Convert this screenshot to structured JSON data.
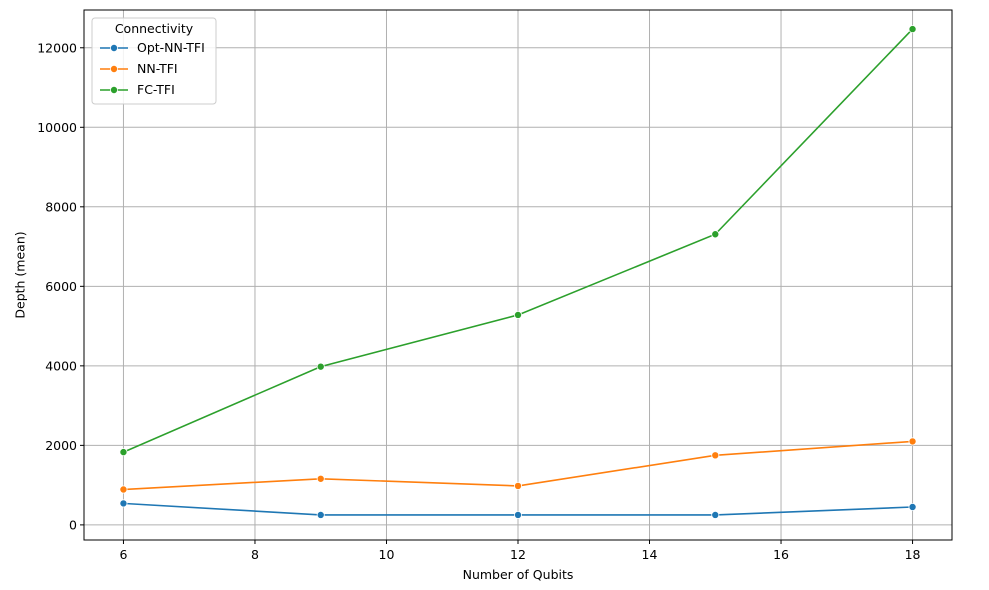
{
  "chart_data": {
    "type": "line",
    "title": "",
    "xlabel": "Number of Qubits",
    "ylabel": "Depth (mean)",
    "xlim": [
      5.4,
      18.6
    ],
    "ylim": [
      -380,
      12950
    ],
    "xticks": [
      6,
      8,
      10,
      12,
      14,
      16,
      18
    ],
    "yticks": [
      0,
      2000,
      4000,
      6000,
      8000,
      10000,
      12000
    ],
    "grid": true,
    "legend": {
      "title": "Connectivity",
      "position": "top-left"
    },
    "x": [
      6,
      9,
      12,
      15,
      18
    ],
    "series": [
      {
        "name": "Opt-NN-TFI",
        "color": "#1f77b4",
        "values": [
          540,
          250,
          250,
          250,
          450
        ]
      },
      {
        "name": "NN-TFI",
        "color": "#ff7f0e",
        "values": [
          890,
          1160,
          980,
          1750,
          2100
        ]
      },
      {
        "name": "FC-TFI",
        "color": "#2ca02c",
        "values": [
          1830,
          3980,
          5280,
          7310,
          12470
        ]
      }
    ]
  }
}
